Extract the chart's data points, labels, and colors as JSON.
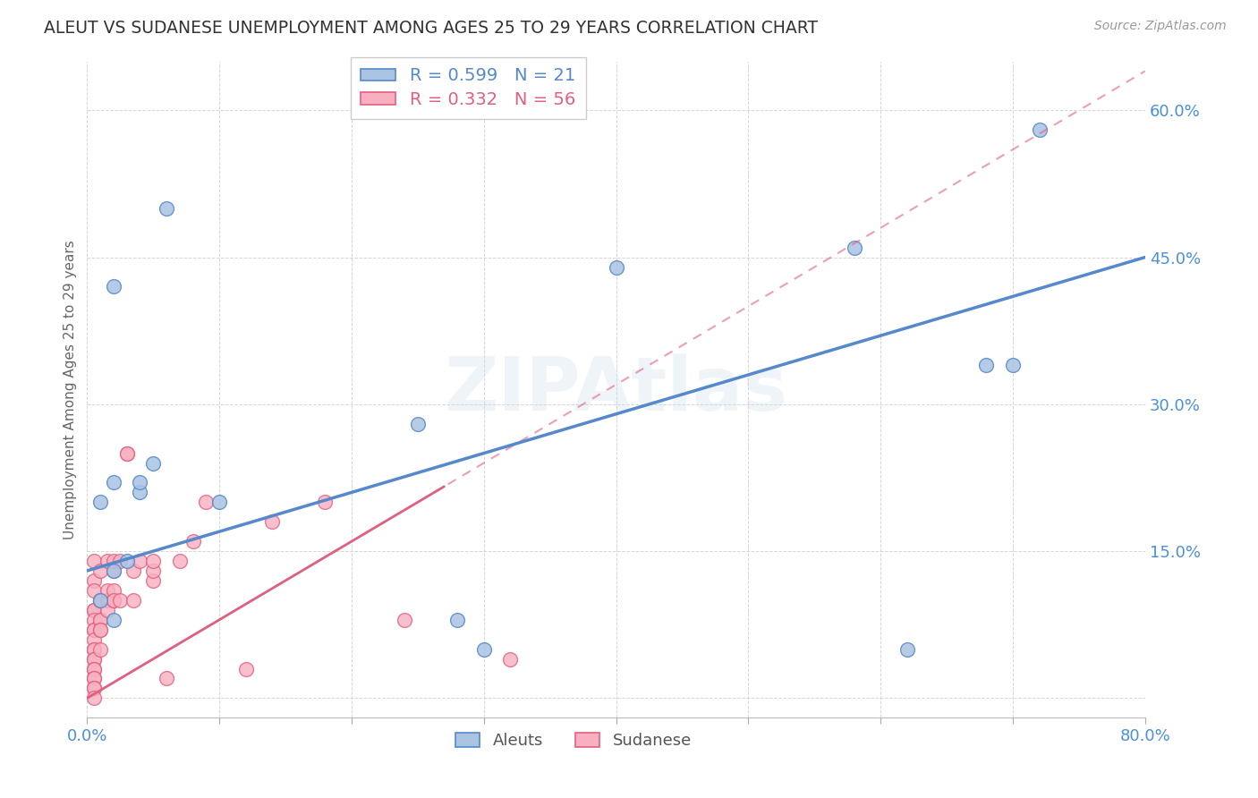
{
  "title": "ALEUT VS SUDANESE UNEMPLOYMENT AMONG AGES 25 TO 29 YEARS CORRELATION CHART",
  "source": "Source: ZipAtlas.com",
  "ylabel": "Unemployment Among Ages 25 to 29 years",
  "xlim": [
    0.0,
    0.8
  ],
  "ylim": [
    -0.02,
    0.65
  ],
  "yticks": [
    0.0,
    0.15,
    0.3,
    0.45,
    0.6
  ],
  "ytick_labels": [
    "",
    "15.0%",
    "30.0%",
    "45.0%",
    "60.0%"
  ],
  "xticks": [
    0.0,
    0.1,
    0.2,
    0.3,
    0.4,
    0.5,
    0.6,
    0.7,
    0.8
  ],
  "aleuts_R": 0.599,
  "aleuts_N": 21,
  "sudanese_R": 0.332,
  "sudanese_N": 56,
  "aleuts_face_color": "#aac4e2",
  "aleuts_edge_color": "#5588cc",
  "sudanese_face_color": "#f8b0c0",
  "sudanese_edge_color": "#e06080",
  "watermark": "ZIPAtlas",
  "aleuts_x": [
    0.02,
    0.05,
    0.02,
    0.03,
    0.01,
    0.01,
    0.02,
    0.04,
    0.06,
    0.1,
    0.25,
    0.4,
    0.62,
    0.68,
    0.7,
    0.72,
    0.3,
    0.28,
    0.58,
    0.02,
    0.04
  ],
  "aleuts_y": [
    0.13,
    0.24,
    0.42,
    0.14,
    0.1,
    0.2,
    0.08,
    0.21,
    0.5,
    0.2,
    0.28,
    0.44,
    0.05,
    0.34,
    0.34,
    0.58,
    0.05,
    0.08,
    0.46,
    0.22,
    0.22
  ],
  "sudanese_x": [
    0.005,
    0.005,
    0.005,
    0.005,
    0.005,
    0.005,
    0.005,
    0.005,
    0.005,
    0.005,
    0.005,
    0.005,
    0.005,
    0.005,
    0.005,
    0.005,
    0.005,
    0.005,
    0.005,
    0.005,
    0.01,
    0.01,
    0.01,
    0.01,
    0.01,
    0.01,
    0.01,
    0.01,
    0.015,
    0.015,
    0.015,
    0.015,
    0.02,
    0.02,
    0.02,
    0.02,
    0.02,
    0.025,
    0.025,
    0.03,
    0.03,
    0.035,
    0.035,
    0.04,
    0.05,
    0.05,
    0.05,
    0.06,
    0.07,
    0.08,
    0.09,
    0.12,
    0.14,
    0.18,
    0.24,
    0.32
  ],
  "sudanese_y": [
    0.09,
    0.09,
    0.08,
    0.07,
    0.07,
    0.06,
    0.05,
    0.05,
    0.04,
    0.04,
    0.03,
    0.03,
    0.02,
    0.02,
    0.01,
    0.01,
    0.0,
    0.12,
    0.14,
    0.11,
    0.1,
    0.1,
    0.08,
    0.08,
    0.07,
    0.07,
    0.05,
    0.13,
    0.1,
    0.09,
    0.11,
    0.14,
    0.1,
    0.11,
    0.13,
    0.14,
    0.1,
    0.1,
    0.14,
    0.25,
    0.25,
    0.1,
    0.13,
    0.14,
    0.12,
    0.13,
    0.14,
    0.02,
    0.14,
    0.16,
    0.2,
    0.03,
    0.18,
    0.2,
    0.08,
    0.04
  ],
  "background_color": "#ffffff",
  "grid_color": "#cccccc",
  "tick_label_color": "#4a90d9",
  "title_color": "#333333",
  "axis_label_color": "#666666",
  "aleuts_line_intercept": 0.13,
  "aleuts_line_end": 0.45,
  "sudanese_line_intercept": 0.0,
  "sudanese_line_end": 0.2
}
